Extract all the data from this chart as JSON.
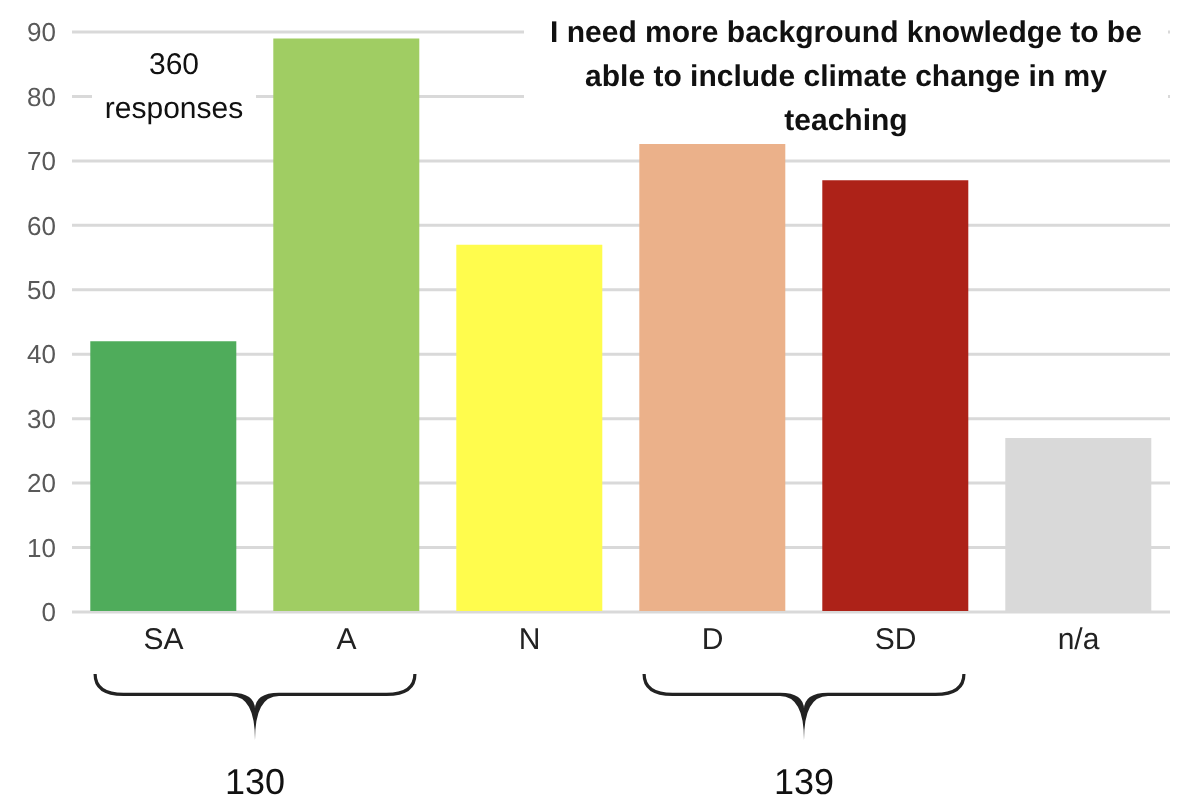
{
  "chart_data": {
    "type": "bar",
    "title": "I need more background knowledge to be able to include climate change in my teaching",
    "categories": [
      "SA",
      "A",
      "N",
      "D",
      "SD",
      "n/a"
    ],
    "values": [
      42,
      89,
      57,
      73,
      67,
      27
    ],
    "colors": [
      "#4fac5b",
      "#a0cd63",
      "#fffc4d",
      "#ebb18a",
      "#ad2218",
      "#d9d9d9"
    ],
    "ylim": [
      0,
      90
    ],
    "yticks": [
      0,
      10,
      20,
      30,
      40,
      50,
      60,
      70,
      80,
      90
    ],
    "grid": "y",
    "annotations": [
      "360 responses",
      "130",
      "139"
    ]
  }
}
